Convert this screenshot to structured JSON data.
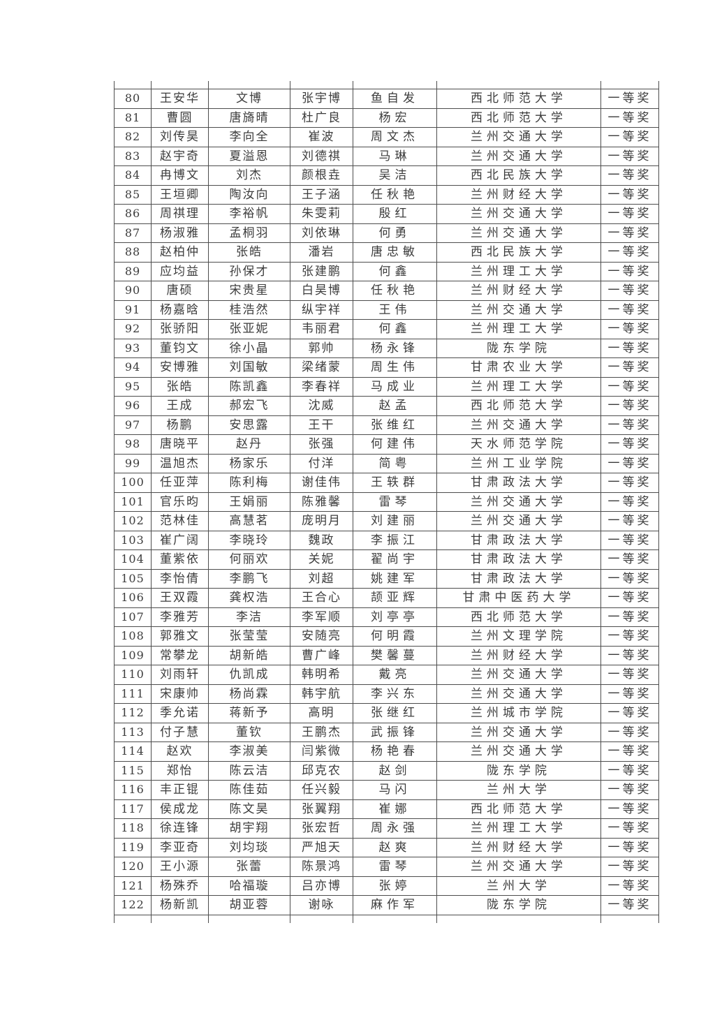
{
  "table": {
    "award_label": "一等奖",
    "rows": [
      {
        "no": "80",
        "members": [
          "王安华",
          "文博",
          "张宇博",
          "鱼自发"
        ],
        "school": "西北师范大学",
        "award": "一等奖"
      },
      {
        "no": "81",
        "members": [
          "曹圆",
          "唐旖晴",
          "杜广良",
          "杨宏"
        ],
        "school": "西北师范大学",
        "award": "一等奖"
      },
      {
        "no": "82",
        "members": [
          "刘传昊",
          "李向全",
          "崔波",
          "周文杰"
        ],
        "school": "兰州交通大学",
        "award": "一等奖"
      },
      {
        "no": "83",
        "members": [
          "赵宇奇",
          "夏溢恩",
          "刘德祺",
          "马琳"
        ],
        "school": "兰州交通大学",
        "award": "一等奖"
      },
      {
        "no": "84",
        "members": [
          "冉博文",
          "刘杰",
          "颜根垚",
          "吴洁"
        ],
        "school": "西北民族大学",
        "award": "一等奖"
      },
      {
        "no": "85",
        "members": [
          "王垣卿",
          "陶汝向",
          "王子涵",
          "任秋艳"
        ],
        "school": "兰州财经大学",
        "award": "一等奖"
      },
      {
        "no": "86",
        "members": [
          "周祺理",
          "李裕帆",
          "朱雯莉",
          "殷红"
        ],
        "school": "兰州交通大学",
        "award": "一等奖"
      },
      {
        "no": "87",
        "members": [
          "杨淑雅",
          "孟桐羽",
          "刘依琳",
          "何勇"
        ],
        "school": "兰州交通大学",
        "award": "一等奖"
      },
      {
        "no": "88",
        "members": [
          "赵柏仲",
          "张皓",
          "潘岩",
          "唐忠敏"
        ],
        "school": "西北民族大学",
        "award": "一等奖"
      },
      {
        "no": "89",
        "members": [
          "应均益",
          "孙保才",
          "张建鹏",
          "何鑫"
        ],
        "school": "兰州理工大学",
        "award": "一等奖"
      },
      {
        "no": "90",
        "members": [
          "唐硕",
          "宋贵星",
          "白昊博",
          "任秋艳"
        ],
        "school": "兰州财经大学",
        "award": "一等奖"
      },
      {
        "no": "91",
        "members": [
          "杨嘉晗",
          "桂浩然",
          "纵宇祥",
          "王伟"
        ],
        "school": "兰州交通大学",
        "award": "一等奖"
      },
      {
        "no": "92",
        "members": [
          "张骄阳",
          "张亚妮",
          "韦丽君",
          "何鑫"
        ],
        "school": "兰州理工大学",
        "award": "一等奖"
      },
      {
        "no": "93",
        "members": [
          "董钧文",
          "徐小晶",
          "郭帅",
          "杨永锋"
        ],
        "school": "陇东学院",
        "award": "一等奖"
      },
      {
        "no": "94",
        "members": [
          "安博雅",
          "刘国敏",
          "梁绪蒙",
          "周生伟"
        ],
        "school": "甘肃农业大学",
        "award": "一等奖"
      },
      {
        "no": "95",
        "members": [
          "张皓",
          "陈凯鑫",
          "李春祥",
          "马成业"
        ],
        "school": "兰州理工大学",
        "award": "一等奖"
      },
      {
        "no": "96",
        "members": [
          "王成",
          "郝宏飞",
          "沈威",
          "赵孟"
        ],
        "school": "西北师范大学",
        "award": "一等奖"
      },
      {
        "no": "97",
        "members": [
          "杨鹏",
          "安思露",
          "王干",
          "张维红"
        ],
        "school": "兰州交通大学",
        "award": "一等奖"
      },
      {
        "no": "98",
        "members": [
          "唐晓平",
          "赵丹",
          "张强",
          "何建伟"
        ],
        "school": "天水师范学院",
        "award": "一等奖"
      },
      {
        "no": "99",
        "members": [
          "温旭杰",
          "杨家乐",
          "付洋",
          "简粤"
        ],
        "school": "兰州工业学院",
        "award": "一等奖"
      },
      {
        "no": "100",
        "members": [
          "任亚萍",
          "陈利梅",
          "谢佳伟",
          "王轶群"
        ],
        "school": "甘肃政法大学",
        "award": "一等奖"
      },
      {
        "no": "101",
        "members": [
          "官乐昀",
          "王娟丽",
          "陈雅馨",
          "雷琴"
        ],
        "school": "兰州交通大学",
        "award": "一等奖"
      },
      {
        "no": "102",
        "members": [
          "范林佳",
          "高慧茗",
          "庞明月",
          "刘建丽"
        ],
        "school": "兰州交通大学",
        "award": "一等奖"
      },
      {
        "no": "103",
        "members": [
          "崔广阔",
          "李晓玲",
          "魏政",
          "李振江"
        ],
        "school": "甘肃政法大学",
        "award": "一等奖"
      },
      {
        "no": "104",
        "members": [
          "董紫依",
          "何丽欢",
          "关妮",
          "翟尚宇"
        ],
        "school": "甘肃政法大学",
        "award": "一等奖"
      },
      {
        "no": "105",
        "members": [
          "李怡倩",
          "李鹏飞",
          "刘超",
          "姚建军"
        ],
        "school": "甘肃政法大学",
        "award": "一等奖"
      },
      {
        "no": "106",
        "members": [
          "王双霞",
          "龚权浩",
          "王合心",
          "颉亚辉"
        ],
        "school": "甘肃中医药大学",
        "award": "一等奖"
      },
      {
        "no": "107",
        "members": [
          "李雅芳",
          "李洁",
          "李军顺",
          "刘亭亭"
        ],
        "school": "西北师范大学",
        "award": "一等奖"
      },
      {
        "no": "108",
        "members": [
          "郭雅文",
          "张莹莹",
          "安随亮",
          "何明霞"
        ],
        "school": "兰州文理学院",
        "award": "一等奖"
      },
      {
        "no": "109",
        "members": [
          "常攀龙",
          "胡新皓",
          "曹广峰",
          "樊馨蔓"
        ],
        "school": "兰州财经大学",
        "award": "一等奖"
      },
      {
        "no": "110",
        "members": [
          "刘雨轩",
          "仇凯成",
          "韩明希",
          "戴亮"
        ],
        "school": "兰州交通大学",
        "award": "一等奖"
      },
      {
        "no": "111",
        "members": [
          "宋康帅",
          "杨尚霖",
          "韩宇航",
          "李兴东"
        ],
        "school": "兰州交通大学",
        "award": "一等奖"
      },
      {
        "no": "112",
        "members": [
          "季允诺",
          "蒋新予",
          "高明",
          "张继红"
        ],
        "school": "兰州城市学院",
        "award": "一等奖"
      },
      {
        "no": "113",
        "members": [
          "付子慧",
          "董钦",
          "王鹏杰",
          "武振锋"
        ],
        "school": "兰州交通大学",
        "award": "一等奖"
      },
      {
        "no": "114",
        "members": [
          "赵欢",
          "李淑美",
          "闫紫微",
          "杨艳春"
        ],
        "school": "兰州交通大学",
        "award": "一等奖"
      },
      {
        "no": "115",
        "members": [
          "郑怡",
          "陈云洁",
          "邱克农",
          "赵剑"
        ],
        "school": "陇东学院",
        "award": "一等奖"
      },
      {
        "no": "116",
        "members": [
          "丰正锟",
          "陈佳茹",
          "任兴毅",
          "马闪"
        ],
        "school": "兰州大学",
        "award": "一等奖"
      },
      {
        "no": "117",
        "members": [
          "侯成龙",
          "陈文昊",
          "张翼翔",
          "崔娜"
        ],
        "school": "西北师范大学",
        "award": "一等奖"
      },
      {
        "no": "118",
        "members": [
          "徐连锋",
          "胡宇翔",
          "张宏哲",
          "周永强"
        ],
        "school": "兰州理工大学",
        "award": "一等奖"
      },
      {
        "no": "119",
        "members": [
          "李亚奇",
          "刘均琰",
          "严旭天",
          "赵爽"
        ],
        "school": "兰州财经大学",
        "award": "一等奖"
      },
      {
        "no": "120",
        "members": [
          "王小源",
          "张蕾",
          "陈景鸿",
          "雷琴"
        ],
        "school": "兰州交通大学",
        "award": "一等奖"
      },
      {
        "no": "121",
        "members": [
          "杨殊乔",
          "哈福璇",
          "吕亦博",
          "张婷"
        ],
        "school": "兰州大学",
        "award": "一等奖"
      },
      {
        "no": "122",
        "members": [
          "杨新凯",
          "胡亚蓉",
          "谢咏",
          "麻作军"
        ],
        "school": "陇东学院",
        "award": "一等奖"
      }
    ]
  }
}
